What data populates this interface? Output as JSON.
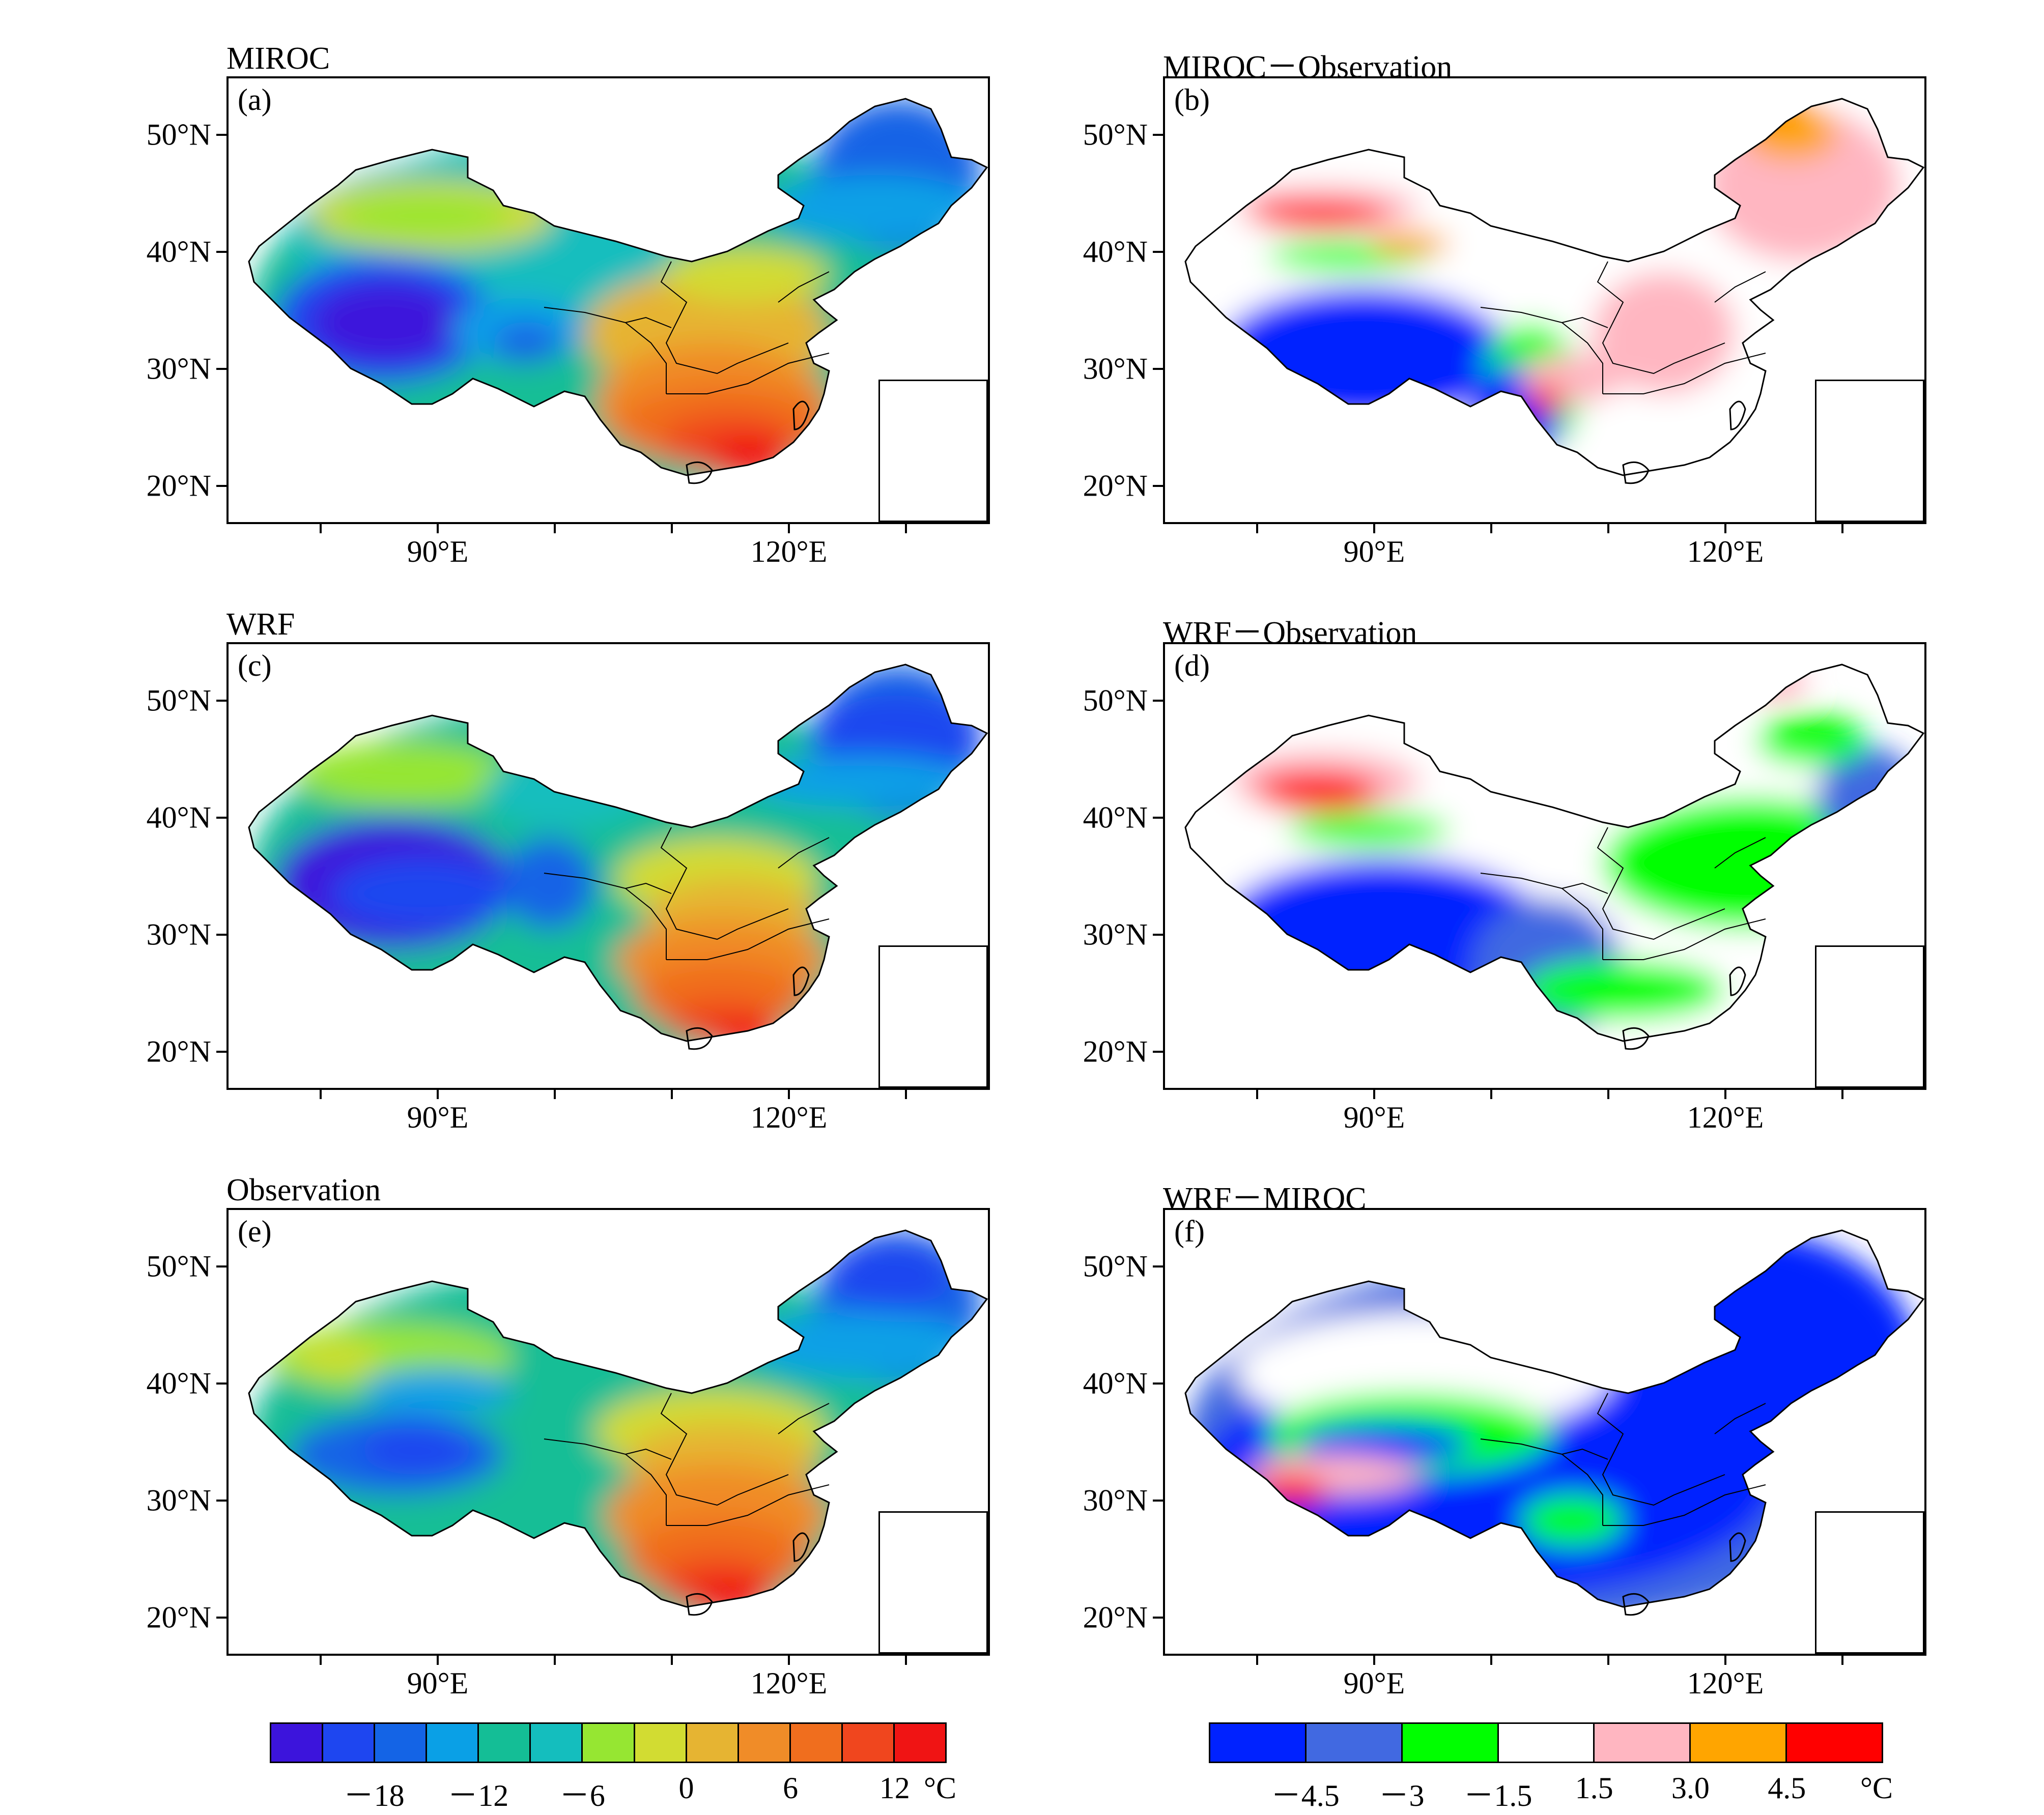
{
  "panels": [
    {
      "id": "a",
      "title": "MIROC",
      "label": "(a)",
      "kind": "abs",
      "variant": 0
    },
    {
      "id": "b",
      "title": "MIROC－Observation",
      "label": "(b)",
      "kind": "diff",
      "variant": 0
    },
    {
      "id": "c",
      "title": "WRF",
      "label": "(c)",
      "kind": "abs",
      "variant": 1
    },
    {
      "id": "d",
      "title": "WRF－Observation",
      "label": "(d)",
      "kind": "diff",
      "variant": 1
    },
    {
      "id": "e",
      "title": "Observation",
      "label": "(e)",
      "kind": "abs",
      "variant": 2
    },
    {
      "id": "f",
      "title": "WRF－MIROC",
      "label": "(f)",
      "kind": "diff",
      "variant": 2
    }
  ],
  "axes": {
    "y_labels": [
      "50°N",
      "40°N",
      "30°N",
      "20°N"
    ],
    "x_labels": [
      "90°E",
      "120°E"
    ]
  },
  "colorbar_left": {
    "colors": [
      "#3c14dc",
      "#1e46f0",
      "#1464e6",
      "#0aa0e6",
      "#14be96",
      "#14bebe",
      "#96e632",
      "#d2dc32",
      "#e6b432",
      "#f08c28",
      "#f06e1e",
      "#f0461e",
      "#f01414"
    ],
    "labels": [
      "－18",
      "－12",
      "－6",
      "0",
      "6",
      "12"
    ],
    "unit": "°C"
  },
  "colorbar_right": {
    "colors": [
      "#0022ff",
      "#4169e1",
      "#00ff00",
      "#ffffff",
      "#ffb6c1",
      "#ffa500",
      "#ff0000"
    ],
    "labels": [
      "－4.5",
      "－3",
      "－1.5",
      "1.5",
      "3.0",
      "4.5"
    ],
    "unit": "°C"
  }
}
